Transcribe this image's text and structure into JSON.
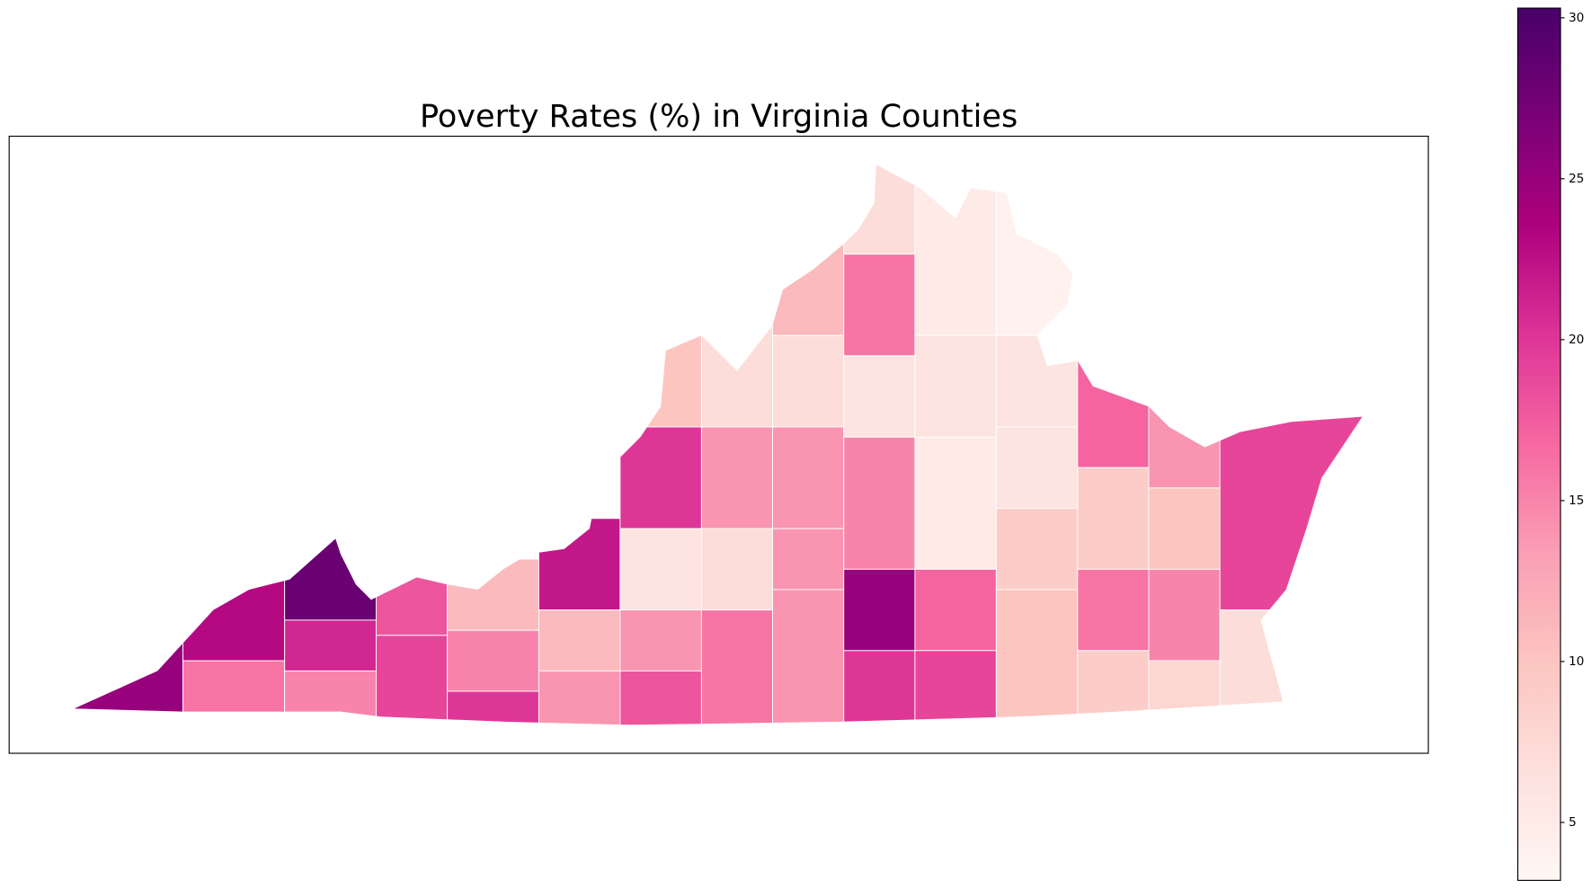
{
  "chart_data": {
    "type": "choropleth",
    "title": "Poverty Rates (%) in Virginia Counties",
    "values": [
      25,
      23,
      16,
      28,
      21,
      15,
      18,
      19,
      11,
      15,
      20,
      22,
      11,
      14,
      10,
      20,
      6,
      14,
      18,
      7,
      14,
      7,
      16,
      11,
      7,
      14,
      14,
      14,
      7,
      16,
      6,
      15,
      25,
      20,
      5,
      6,
      5,
      17,
      19,
      4,
      6,
      6,
      9,
      10,
      17,
      9,
      16,
      9,
      14,
      10,
      15,
      8,
      19,
      7
    ],
    "colorscale": [
      "#fff7f3",
      "#fde0dd",
      "#fcc5c0",
      "#fa9fb5",
      "#f768a1",
      "#dd3497",
      "#ae017e",
      "#7a0177",
      "#49006a"
    ],
    "clim": [
      3.2,
      30.3
    ],
    "cticks": [
      5,
      10,
      15,
      20,
      25,
      30
    ]
  }
}
